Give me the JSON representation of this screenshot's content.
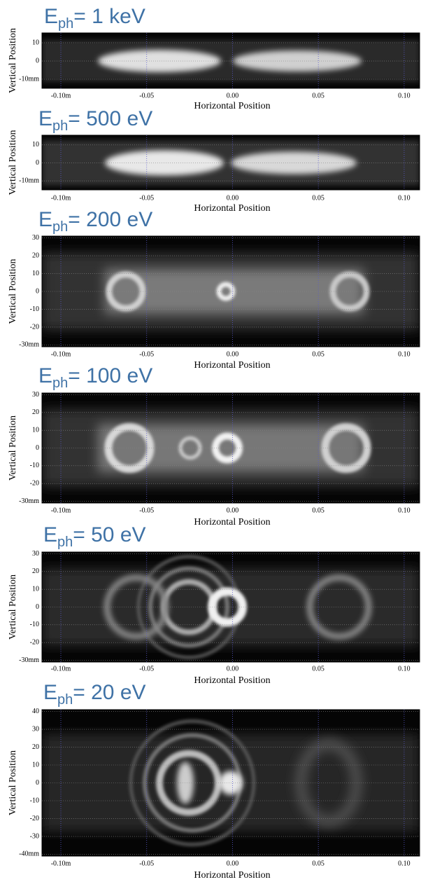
{
  "chart_data": [
    {
      "type": "image",
      "title": [
        "E",
        "ph",
        "= 1 keV"
      ],
      "xlabel": "Horizontal Position",
      "ylabel": "Vertical Position",
      "xlim": [
        -0.111,
        0.109
      ],
      "xticks": [
        {
          "value": -0.1,
          "label": "-0.10m"
        },
        -0.05,
        {
          "value": 0,
          "label": "0.00"
        },
        0.05,
        {
          "value": 0.1,
          "label": "0.10"
        }
      ],
      "ylim": [
        -15,
        15.4
      ],
      "yticks": [
        10,
        0,
        {
          "value": -10,
          "label": "-10mm"
        }
      ],
      "grid": true
    },
    {
      "type": "image",
      "title": [
        "E",
        "ph",
        "= 500 eV"
      ],
      "xlabel": "Horizontal Position",
      "ylabel": "Vertical Position",
      "xlim": [
        -0.111,
        0.109
      ],
      "xticks": [
        {
          "value": -0.1,
          "label": "-0.10m"
        },
        -0.05,
        {
          "value": 0,
          "label": "0.00"
        },
        0.05,
        {
          "value": 0.1,
          "label": "0.10"
        }
      ],
      "ylim": [
        -15,
        15.4
      ],
      "yticks": [
        10,
        0,
        {
          "value": -10,
          "label": "-10mm"
        }
      ],
      "grid": true
    },
    {
      "type": "image",
      "title": [
        "E",
        "ph",
        "= 200 eV"
      ],
      "xlabel": "Horizontal Position",
      "ylabel": "Vertical Position",
      "xlim": [
        -0.111,
        0.109
      ],
      "xticks": [
        {
          "value": -0.1,
          "label": "-0.10m"
        },
        -0.05,
        {
          "value": 0,
          "label": "0.00"
        },
        0.05,
        {
          "value": 0.1,
          "label": "0.10"
        }
      ],
      "ylim": [
        -31,
        31
      ],
      "yticks": [
        30,
        20,
        10,
        0,
        -10,
        -20,
        {
          "value": -30,
          "label": "-30mm"
        }
      ],
      "grid": true
    },
    {
      "type": "image",
      "title": [
        "E",
        "ph",
        "= 100 eV"
      ],
      "xlabel": "Horizontal Position",
      "ylabel": "Vertical Position",
      "xlim": [
        -0.111,
        0.109
      ],
      "xticks": [
        {
          "value": -0.1,
          "label": "-0.10m"
        },
        -0.05,
        {
          "value": 0,
          "label": "0.00"
        },
        0.05,
        {
          "value": 0.1,
          "label": "0.10"
        }
      ],
      "ylim": [
        -31,
        31
      ],
      "yticks": [
        30,
        20,
        10,
        0,
        -10,
        -20,
        {
          "value": -30,
          "label": "-30mm"
        }
      ],
      "grid": true
    },
    {
      "type": "image",
      "title": [
        "E",
        "ph",
        "= 50 eV"
      ],
      "xlabel": "Horizontal Position",
      "ylabel": "Vertical Position",
      "xlim": [
        -0.111,
        0.109
      ],
      "xticks": [
        {
          "value": -0.1,
          "label": "-0.10m"
        },
        -0.05,
        {
          "value": 0,
          "label": "0.00"
        },
        0.05,
        {
          "value": 0.1,
          "label": "0.10"
        }
      ],
      "ylim": [
        -31,
        31
      ],
      "yticks": [
        30,
        20,
        10,
        0,
        -10,
        -20,
        {
          "value": -30,
          "label": "-30mm"
        }
      ],
      "grid": true
    },
    {
      "type": "image",
      "title": [
        "E",
        "ph",
        "= 20 eV"
      ],
      "xlabel": "Horizontal Position",
      "ylabel": "Vertical Position",
      "xlim": [
        -0.111,
        0.109
      ],
      "xticks": [
        {
          "value": -0.1,
          "label": "-0.10m"
        },
        -0.05,
        {
          "value": 0,
          "label": "0.00"
        },
        0.05,
        {
          "value": 0.1,
          "label": "0.10"
        }
      ],
      "ylim": [
        -41,
        41
      ],
      "yticks": [
        40,
        30,
        20,
        10,
        0,
        -10,
        -20,
        -30,
        {
          "value": -40,
          "label": "-40mm"
        }
      ],
      "grid": true
    }
  ]
}
